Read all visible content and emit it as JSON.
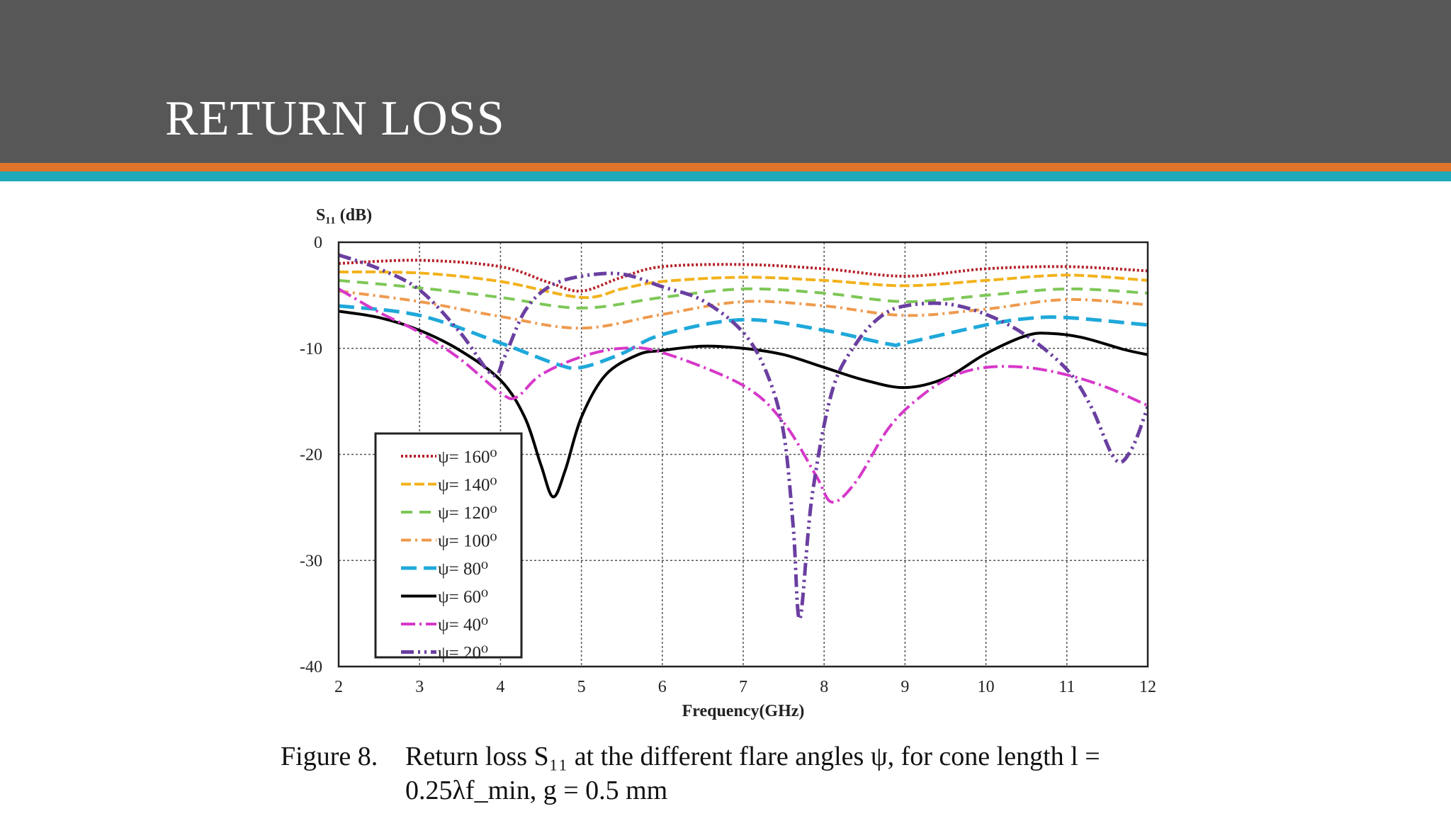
{
  "slide": {
    "title": "RETURN LOSS",
    "colors": {
      "banner": "#575757",
      "stripe_orange": "#e2732a",
      "stripe_teal": "#1fa9bb"
    }
  },
  "caption": {
    "label": "Figure 8.",
    "line1": "Return loss S₁₁ at the different flare angles ψ, for cone length l =",
    "line2": "0.25λf_min, g = 0.5 mm"
  },
  "chart_data": {
    "type": "line",
    "title": "",
    "ylabel": "S₁₁ (dB)",
    "xlabel": "Frequency(GHz)",
    "xlim": [
      2,
      12
    ],
    "ylim": [
      -40,
      0
    ],
    "xticks": [
      2,
      3,
      4,
      5,
      6,
      7,
      8,
      9,
      10,
      11,
      12
    ],
    "yticks": [
      0,
      -10,
      -20,
      -30,
      -40
    ],
    "grid": true,
    "legend_position": "lower-left",
    "series": [
      {
        "name": "ψ= 160⁰",
        "color": "#b5222a",
        "dash": "3,3",
        "width": 4,
        "points": [
          [
            2,
            -2
          ],
          [
            3,
            -1.7
          ],
          [
            4,
            -2.3
          ],
          [
            4.6,
            -3.8
          ],
          [
            5,
            -4.6
          ],
          [
            5.5,
            -3.3
          ],
          [
            6,
            -2.3
          ],
          [
            7,
            -2.1
          ],
          [
            8,
            -2.5
          ],
          [
            9,
            -3.2
          ],
          [
            10,
            -2.5
          ],
          [
            11,
            -2.3
          ],
          [
            12,
            -2.7
          ]
        ]
      },
      {
        "name": "ψ= 140⁰",
        "color": "#f2b21c",
        "dash": "14,5",
        "width": 4,
        "points": [
          [
            2,
            -2.8
          ],
          [
            3,
            -2.9
          ],
          [
            4,
            -3.7
          ],
          [
            5,
            -5.2
          ],
          [
            5.5,
            -4.4
          ],
          [
            6,
            -3.7
          ],
          [
            7,
            -3.3
          ],
          [
            8,
            -3.6
          ],
          [
            9,
            -4.1
          ],
          [
            10,
            -3.6
          ],
          [
            11,
            -3.1
          ],
          [
            12,
            -3.6
          ]
        ]
      },
      {
        "name": "ψ= 120⁰",
        "color": "#7dc757",
        "dash": "16,10",
        "width": 4,
        "points": [
          [
            2,
            -3.6
          ],
          [
            3,
            -4.3
          ],
          [
            4,
            -5.2
          ],
          [
            5,
            -6.2
          ],
          [
            6,
            -5.2
          ],
          [
            7,
            -4.4
          ],
          [
            8,
            -4.8
          ],
          [
            9,
            -5.6
          ],
          [
            10,
            -5
          ],
          [
            11,
            -4.4
          ],
          [
            12,
            -4.8
          ]
        ]
      },
      {
        "name": "ψ= 100⁰",
        "color": "#ee9a4e",
        "dash": "14,6,3,6",
        "width": 4,
        "points": [
          [
            2,
            -4.6
          ],
          [
            3,
            -5.6
          ],
          [
            4,
            -7
          ],
          [
            5,
            -8.1
          ],
          [
            6,
            -6.8
          ],
          [
            7,
            -5.6
          ],
          [
            8,
            -6
          ],
          [
            9,
            -6.9
          ],
          [
            10,
            -6.3
          ],
          [
            11,
            -5.4
          ],
          [
            12,
            -5.9
          ]
        ]
      },
      {
        "name": "ψ= 80⁰",
        "color": "#1fa8da",
        "dash": "22,10",
        "width": 5,
        "points": [
          [
            2,
            -6
          ],
          [
            3,
            -6.9
          ],
          [
            4,
            -9.5
          ],
          [
            4.7,
            -11.5
          ],
          [
            5,
            -11.8
          ],
          [
            5.5,
            -10.5
          ],
          [
            6,
            -8.7
          ],
          [
            7,
            -7.3
          ],
          [
            8,
            -8.3
          ],
          [
            8.8,
            -9.6
          ],
          [
            9,
            -9.5
          ],
          [
            10,
            -7.8
          ],
          [
            10.5,
            -7.2
          ],
          [
            11,
            -7.1
          ],
          [
            12,
            -7.8
          ]
        ]
      },
      {
        "name": "ψ= 60⁰",
        "color": "#000000",
        "dash": "",
        "width": 4,
        "points": [
          [
            2,
            -6.5
          ],
          [
            2.5,
            -7.1
          ],
          [
            3,
            -8.3
          ],
          [
            3.5,
            -10.2
          ],
          [
            4,
            -13
          ],
          [
            4.3,
            -16.5
          ],
          [
            4.5,
            -21
          ],
          [
            4.65,
            -24
          ],
          [
            4.8,
            -21.5
          ],
          [
            5,
            -16.5
          ],
          [
            5.3,
            -12.5
          ],
          [
            5.7,
            -10.6
          ],
          [
            6,
            -10.2
          ],
          [
            6.5,
            -9.8
          ],
          [
            7,
            -10
          ],
          [
            7.5,
            -10.6
          ],
          [
            8,
            -11.8
          ],
          [
            8.5,
            -13
          ],
          [
            9,
            -13.7
          ],
          [
            9.5,
            -12.8
          ],
          [
            10,
            -10.5
          ],
          [
            10.5,
            -8.8
          ],
          [
            10.8,
            -8.6
          ],
          [
            11.2,
            -9
          ],
          [
            11.7,
            -10.1
          ],
          [
            12,
            -10.6
          ]
        ]
      },
      {
        "name": "ψ= 40⁰",
        "color": "#d638c9",
        "dash": "20,6,3,6",
        "width": 4,
        "points": [
          [
            2,
            -4.4
          ],
          [
            2.5,
            -6.6
          ],
          [
            3,
            -8.5
          ],
          [
            3.5,
            -11
          ],
          [
            4,
            -14.2
          ],
          [
            4.2,
            -14.6
          ],
          [
            4.5,
            -12.5
          ],
          [
            5,
            -10.8
          ],
          [
            5.5,
            -10
          ],
          [
            6,
            -10.4
          ],
          [
            7,
            -13.5
          ],
          [
            7.5,
            -17
          ],
          [
            7.9,
            -22
          ],
          [
            8.1,
            -24.5
          ],
          [
            8.4,
            -22.5
          ],
          [
            8.8,
            -17.5
          ],
          [
            9.2,
            -14.5
          ],
          [
            9.6,
            -12.6
          ],
          [
            10,
            -11.8
          ],
          [
            10.5,
            -11.8
          ],
          [
            11,
            -12.5
          ],
          [
            11.5,
            -13.7
          ],
          [
            12,
            -15.4
          ]
        ]
      },
      {
        "name": "ψ= 20⁰",
        "color": "#6a3fa0",
        "dash": "18,6,3,6,3,6",
        "width": 5,
        "points": [
          [
            2,
            -1.2
          ],
          [
            2.5,
            -2.5
          ],
          [
            3,
            -4.5
          ],
          [
            3.5,
            -8.5
          ],
          [
            3.9,
            -12.5
          ],
          [
            4.05,
            -10.8
          ],
          [
            4.3,
            -6.5
          ],
          [
            4.6,
            -4.2
          ],
          [
            5,
            -3.2
          ],
          [
            5.5,
            -3
          ],
          [
            6,
            -4.2
          ],
          [
            6.5,
            -5.5
          ],
          [
            7,
            -8.5
          ],
          [
            7.3,
            -12.5
          ],
          [
            7.5,
            -18
          ],
          [
            7.62,
            -27
          ],
          [
            7.7,
            -35.5
          ],
          [
            7.85,
            -24
          ],
          [
            8.1,
            -14
          ],
          [
            8.4,
            -9.5
          ],
          [
            8.7,
            -7
          ],
          [
            9,
            -6
          ],
          [
            9.5,
            -5.8
          ],
          [
            10,
            -6.8
          ],
          [
            10.5,
            -8.8
          ],
          [
            11,
            -12
          ],
          [
            11.3,
            -15.5
          ],
          [
            11.6,
            -20.5
          ],
          [
            11.8,
            -19.5
          ],
          [
            12,
            -15.5
          ]
        ]
      }
    ]
  }
}
